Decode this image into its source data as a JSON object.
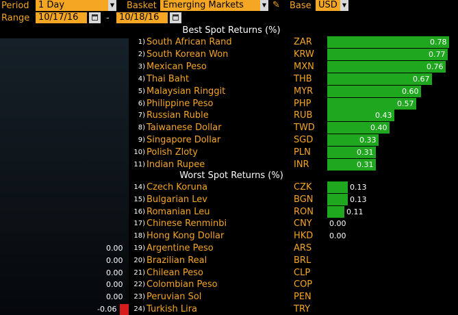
{
  "controls": {
    "period_label": "Period",
    "period_value": "1 Day",
    "basket_label": "Basket",
    "basket_value": "Emerging Markets",
    "base_label": "Base",
    "base_value": "USD",
    "range_label": "Range",
    "range_start": "10/17/16",
    "range_sep": "-",
    "range_end": "10/18/16"
  },
  "best_title": "Best Spot Returns (%)",
  "worst_title": "Worst Spot Returns (%)",
  "best": [
    {
      "rank": "1)",
      "name": "South African Rand",
      "code": "ZAR",
      "value": 0.78,
      "label": "0.78"
    },
    {
      "rank": "2)",
      "name": "South Korean Won",
      "code": "KRW",
      "value": 0.77,
      "label": "0.77"
    },
    {
      "rank": "3)",
      "name": "Mexican Peso",
      "code": "MXN",
      "value": 0.76,
      "label": "0.76"
    },
    {
      "rank": "4)",
      "name": "Thai Baht",
      "code": "THB",
      "value": 0.67,
      "label": "0.67"
    },
    {
      "rank": "5)",
      "name": "Malaysian Ringgit",
      "code": "MYR",
      "value": 0.6,
      "label": "0.60"
    },
    {
      "rank": "6)",
      "name": "Philippine Peso",
      "code": "PHP",
      "value": 0.57,
      "label": "0.57"
    },
    {
      "rank": "7)",
      "name": "Russian Ruble",
      "code": "RUB",
      "value": 0.43,
      "label": "0.43"
    },
    {
      "rank": "8)",
      "name": "Taiwanese Dollar",
      "code": "TWD",
      "value": 0.4,
      "label": "0.40"
    },
    {
      "rank": "9)",
      "name": "Singapore Dollar",
      "code": "SGD",
      "value": 0.33,
      "label": "0.33"
    },
    {
      "rank": "10)",
      "name": "Polish Zloty",
      "code": "PLN",
      "value": 0.31,
      "label": "0.31"
    },
    {
      "rank": "11)",
      "name": "Indian Rupee",
      "code": "INR",
      "value": 0.31,
      "label": "0.31"
    }
  ],
  "worst": [
    {
      "rank": "14)",
      "name": "Czech Koruna",
      "code": "CZK",
      "value": 0.13,
      "label": "0.13"
    },
    {
      "rank": "15)",
      "name": "Bulgarian Lev",
      "code": "BGN",
      "value": 0.13,
      "label": "0.13"
    },
    {
      "rank": "16)",
      "name": "Romanian Leu",
      "code": "RON",
      "value": 0.11,
      "label": "0.11"
    },
    {
      "rank": "17)",
      "name": "Chinese Renminbi",
      "code": "CNY",
      "value": 0.0,
      "label": "0.00"
    },
    {
      "rank": "18)",
      "name": "Hong Kong Dollar",
      "code": "HKD",
      "value": 0.0,
      "label": "0.00"
    },
    {
      "rank": "19)",
      "name": "Argentine Peso",
      "code": "ARS",
      "value": 0.0,
      "label": "0.00"
    },
    {
      "rank": "20)",
      "name": "Brazilian Real",
      "code": "BRL",
      "value": 0.0,
      "label": "0.00"
    },
    {
      "rank": "21)",
      "name": "Chilean Peso",
      "code": "CLP",
      "value": 0.0,
      "label": "0.00"
    },
    {
      "rank": "22)",
      "name": "Colombian Peso",
      "code": "COP",
      "value": 0.0,
      "label": "0.00"
    },
    {
      "rank": "23)",
      "name": "Peruvian Sol",
      "code": "PEN",
      "value": 0.0,
      "label": "0.00"
    },
    {
      "rank": "24)",
      "name": "Turkish Lira",
      "code": "TRY",
      "value": -0.06,
      "label": "-0.06"
    }
  ],
  "colors": {
    "positive": "#1fa81f",
    "negative": "#d81b1b",
    "label": "#f5a623"
  }
}
